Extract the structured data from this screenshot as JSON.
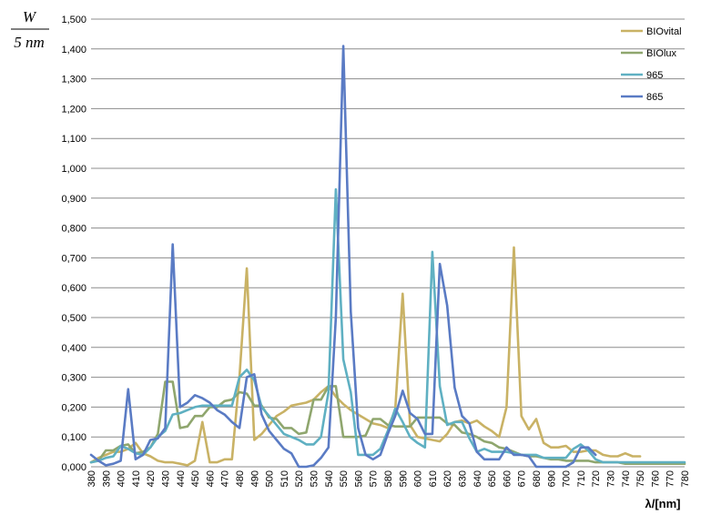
{
  "chart_data": {
    "type": "line",
    "ylabel_numerator": "W",
    "ylabel_denominator": "5 nm",
    "xlabel": "λ/[nm]",
    "ylim": [
      0,
      1.5
    ],
    "ytick_step": 0.1,
    "ytick_labels": [
      "0,000",
      "0,100",
      "0,200",
      "0,300",
      "0,400",
      "0,500",
      "0,600",
      "0,700",
      "0,800",
      "0,900",
      "1,000",
      "1,100",
      "1,200",
      "1,300",
      "1,400",
      "1,500"
    ],
    "x": [
      380,
      390,
      400,
      410,
      420,
      430,
      440,
      450,
      460,
      470,
      480,
      490,
      500,
      510,
      520,
      530,
      540,
      550,
      560,
      570,
      580,
      590,
      600,
      610,
      620,
      630,
      640,
      650,
      660,
      670,
      680,
      690,
      700,
      710,
      720,
      730,
      740,
      750,
      760,
      770,
      780
    ],
    "grid": true,
    "legend_position": "top-right",
    "series": [
      {
        "name": "BIOvital",
        "color": "#c9b265",
        "points": [
          [
            380,
            0.015
          ],
          [
            385,
            0.03
          ],
          [
            390,
            0.04
          ],
          [
            395,
            0.05
          ],
          [
            400,
            0.05
          ],
          [
            405,
            0.06
          ],
          [
            410,
            0.08
          ],
          [
            415,
            0.045
          ],
          [
            420,
            0.035
          ],
          [
            425,
            0.02
          ],
          [
            430,
            0.015
          ],
          [
            435,
            0.015
          ],
          [
            440,
            0.01
          ],
          [
            445,
            0.005
          ],
          [
            450,
            0.02
          ],
          [
            455,
            0.15
          ],
          [
            460,
            0.015
          ],
          [
            465,
            0.015
          ],
          [
            470,
            0.025
          ],
          [
            475,
            0.025
          ],
          [
            480,
            0.3
          ],
          [
            485,
            0.665
          ],
          [
            490,
            0.09
          ],
          [
            495,
            0.11
          ],
          [
            500,
            0.14
          ],
          [
            505,
            0.17
          ],
          [
            510,
            0.185
          ],
          [
            515,
            0.205
          ],
          [
            520,
            0.21
          ],
          [
            525,
            0.215
          ],
          [
            530,
            0.225
          ],
          [
            535,
            0.25
          ],
          [
            540,
            0.27
          ],
          [
            545,
            0.235
          ],
          [
            550,
            0.21
          ],
          [
            555,
            0.19
          ],
          [
            560,
            0.175
          ],
          [
            565,
            0.16
          ],
          [
            570,
            0.145
          ],
          [
            575,
            0.14
          ],
          [
            580,
            0.13
          ],
          [
            585,
            0.19
          ],
          [
            590,
            0.58
          ],
          [
            595,
            0.14
          ],
          [
            600,
            0.1
          ],
          [
            605,
            0.095
          ],
          [
            610,
            0.09
          ],
          [
            615,
            0.085
          ],
          [
            620,
            0.11
          ],
          [
            625,
            0.15
          ],
          [
            630,
            0.155
          ],
          [
            635,
            0.145
          ],
          [
            640,
            0.155
          ],
          [
            645,
            0.135
          ],
          [
            650,
            0.12
          ],
          [
            655,
            0.1
          ],
          [
            660,
            0.2
          ],
          [
            665,
            0.735
          ],
          [
            670,
            0.17
          ],
          [
            675,
            0.125
          ],
          [
            680,
            0.16
          ],
          [
            685,
            0.08
          ],
          [
            690,
            0.065
          ],
          [
            695,
            0.065
          ],
          [
            700,
            0.07
          ],
          [
            705,
            0.05
          ],
          [
            710,
            0.05
          ],
          [
            715,
            0.055
          ],
          [
            720,
            0.055
          ],
          [
            725,
            0.04
          ],
          [
            730,
            0.035
          ],
          [
            735,
            0.035
          ],
          [
            740,
            0.045
          ],
          [
            745,
            0.035
          ],
          [
            750,
            0.035
          ]
        ]
      },
      {
        "name": "BIOlux",
        "color": "#8fa66e",
        "points": [
          [
            380,
            0.015
          ],
          [
            385,
            0.02
          ],
          [
            390,
            0.055
          ],
          [
            395,
            0.055
          ],
          [
            400,
            0.07
          ],
          [
            405,
            0.075
          ],
          [
            410,
            0.045
          ],
          [
            415,
            0.05
          ],
          [
            420,
            0.065
          ],
          [
            425,
            0.11
          ],
          [
            430,
            0.285
          ],
          [
            435,
            0.285
          ],
          [
            440,
            0.13
          ],
          [
            445,
            0.135
          ],
          [
            450,
            0.17
          ],
          [
            455,
            0.17
          ],
          [
            460,
            0.2
          ],
          [
            465,
            0.2
          ],
          [
            470,
            0.22
          ],
          [
            475,
            0.225
          ],
          [
            480,
            0.25
          ],
          [
            485,
            0.245
          ],
          [
            490,
            0.205
          ],
          [
            495,
            0.205
          ],
          [
            500,
            0.165
          ],
          [
            505,
            0.16
          ],
          [
            510,
            0.13
          ],
          [
            515,
            0.13
          ],
          [
            520,
            0.11
          ],
          [
            525,
            0.115
          ],
          [
            530,
            0.225
          ],
          [
            535,
            0.225
          ],
          [
            540,
            0.27
          ],
          [
            545,
            0.27
          ],
          [
            550,
            0.1
          ],
          [
            555,
            0.1
          ],
          [
            560,
            0.1
          ],
          [
            565,
            0.105
          ],
          [
            570,
            0.16
          ],
          [
            575,
            0.16
          ],
          [
            580,
            0.14
          ],
          [
            585,
            0.135
          ],
          [
            590,
            0.135
          ],
          [
            595,
            0.135
          ],
          [
            600,
            0.165
          ],
          [
            605,
            0.165
          ],
          [
            610,
            0.165
          ],
          [
            615,
            0.165
          ],
          [
            620,
            0.145
          ],
          [
            625,
            0.14
          ],
          [
            630,
            0.115
          ],
          [
            635,
            0.11
          ],
          [
            640,
            0.1
          ],
          [
            645,
            0.085
          ],
          [
            650,
            0.08
          ],
          [
            655,
            0.065
          ],
          [
            660,
            0.06
          ],
          [
            665,
            0.05
          ],
          [
            670,
            0.04
          ],
          [
            675,
            0.035
          ],
          [
            680,
            0.035
          ],
          [
            685,
            0.03
          ],
          [
            690,
            0.025
          ],
          [
            695,
            0.025
          ],
          [
            700,
            0.02
          ],
          [
            705,
            0.02
          ],
          [
            710,
            0.02
          ],
          [
            715,
            0.02
          ],
          [
            720,
            0.015
          ],
          [
            725,
            0.015
          ],
          [
            730,
            0.015
          ],
          [
            735,
            0.015
          ],
          [
            740,
            0.01
          ],
          [
            745,
            0.01
          ],
          [
            750,
            0.01
          ],
          [
            755,
            0.01
          ],
          [
            760,
            0.01
          ],
          [
            765,
            0.01
          ],
          [
            770,
            0.01
          ],
          [
            775,
            0.01
          ],
          [
            780,
            0.01
          ]
        ]
      },
      {
        "name": "965",
        "color": "#5fb0c2",
        "points": [
          [
            380,
            0.015
          ],
          [
            385,
            0.02
          ],
          [
            390,
            0.03
          ],
          [
            395,
            0.035
          ],
          [
            400,
            0.07
          ],
          [
            405,
            0.06
          ],
          [
            410,
            0.045
          ],
          [
            415,
            0.04
          ],
          [
            420,
            0.065
          ],
          [
            425,
            0.1
          ],
          [
            430,
            0.12
          ],
          [
            435,
            0.175
          ],
          [
            440,
            0.18
          ],
          [
            445,
            0.19
          ],
          [
            450,
            0.2
          ],
          [
            455,
            0.205
          ],
          [
            460,
            0.205
          ],
          [
            465,
            0.205
          ],
          [
            470,
            0.205
          ],
          [
            475,
            0.205
          ],
          [
            480,
            0.3
          ],
          [
            485,
            0.325
          ],
          [
            490,
            0.29
          ],
          [
            495,
            0.2
          ],
          [
            500,
            0.17
          ],
          [
            505,
            0.14
          ],
          [
            510,
            0.11
          ],
          [
            515,
            0.1
          ],
          [
            520,
            0.09
          ],
          [
            525,
            0.075
          ],
          [
            530,
            0.075
          ],
          [
            535,
            0.1
          ],
          [
            540,
            0.25
          ],
          [
            545,
            0.93
          ],
          [
            550,
            0.36
          ],
          [
            555,
            0.25
          ],
          [
            560,
            0.04
          ],
          [
            565,
            0.04
          ],
          [
            570,
            0.04
          ],
          [
            575,
            0.06
          ],
          [
            580,
            0.12
          ],
          [
            585,
            0.195
          ],
          [
            590,
            0.15
          ],
          [
            595,
            0.1
          ],
          [
            600,
            0.08
          ],
          [
            605,
            0.065
          ],
          [
            610,
            0.72
          ],
          [
            615,
            0.27
          ],
          [
            620,
            0.14
          ],
          [
            625,
            0.15
          ],
          [
            630,
            0.15
          ],
          [
            635,
            0.095
          ],
          [
            640,
            0.05
          ],
          [
            645,
            0.06
          ],
          [
            650,
            0.05
          ],
          [
            655,
            0.05
          ],
          [
            660,
            0.05
          ],
          [
            665,
            0.045
          ],
          [
            670,
            0.04
          ],
          [
            675,
            0.04
          ],
          [
            680,
            0.04
          ],
          [
            685,
            0.03
          ],
          [
            690,
            0.03
          ],
          [
            695,
            0.03
          ],
          [
            700,
            0.03
          ],
          [
            705,
            0.06
          ],
          [
            710,
            0.075
          ],
          [
            715,
            0.055
          ],
          [
            720,
            0.025
          ],
          [
            725,
            0.015
          ],
          [
            730,
            0.015
          ],
          [
            735,
            0.015
          ],
          [
            740,
            0.015
          ],
          [
            745,
            0.015
          ],
          [
            750,
            0.015
          ],
          [
            755,
            0.015
          ],
          [
            760,
            0.015
          ],
          [
            765,
            0.015
          ],
          [
            770,
            0.015
          ],
          [
            775,
            0.015
          ],
          [
            780,
            0.015
          ]
        ]
      },
      {
        "name": "865",
        "color": "#5a7bc4",
        "points": [
          [
            380,
            0.04
          ],
          [
            385,
            0.02
          ],
          [
            390,
            0.005
          ],
          [
            395,
            0.01
          ],
          [
            400,
            0.02
          ],
          [
            405,
            0.26
          ],
          [
            410,
            0.025
          ],
          [
            415,
            0.04
          ],
          [
            420,
            0.09
          ],
          [
            425,
            0.095
          ],
          [
            430,
            0.13
          ],
          [
            435,
            0.745
          ],
          [
            440,
            0.2
          ],
          [
            445,
            0.215
          ],
          [
            450,
            0.24
          ],
          [
            455,
            0.23
          ],
          [
            460,
            0.215
          ],
          [
            465,
            0.19
          ],
          [
            470,
            0.175
          ],
          [
            475,
            0.15
          ],
          [
            480,
            0.13
          ],
          [
            485,
            0.3
          ],
          [
            490,
            0.31
          ],
          [
            495,
            0.175
          ],
          [
            500,
            0.12
          ],
          [
            505,
            0.09
          ],
          [
            510,
            0.06
          ],
          [
            515,
            0.045
          ],
          [
            520,
            0.0
          ],
          [
            525,
            0.0
          ],
          [
            530,
            0.005
          ],
          [
            535,
            0.03
          ],
          [
            540,
            0.065
          ],
          [
            545,
            0.5
          ],
          [
            550,
            1.41
          ],
          [
            555,
            0.52
          ],
          [
            560,
            0.13
          ],
          [
            565,
            0.04
          ],
          [
            570,
            0.025
          ],
          [
            575,
            0.04
          ],
          [
            580,
            0.11
          ],
          [
            585,
            0.17
          ],
          [
            590,
            0.255
          ],
          [
            595,
            0.18
          ],
          [
            600,
            0.16
          ],
          [
            605,
            0.11
          ],
          [
            610,
            0.11
          ],
          [
            615,
            0.68
          ],
          [
            620,
            0.54
          ],
          [
            625,
            0.265
          ],
          [
            630,
            0.17
          ],
          [
            635,
            0.145
          ],
          [
            640,
            0.05
          ],
          [
            645,
            0.025
          ],
          [
            650,
            0.025
          ],
          [
            655,
            0.025
          ],
          [
            660,
            0.065
          ],
          [
            665,
            0.04
          ],
          [
            670,
            0.04
          ],
          [
            675,
            0.035
          ],
          [
            680,
            0.0
          ],
          [
            685,
            0.0
          ],
          [
            690,
            0.0
          ],
          [
            695,
            0.0
          ],
          [
            700,
            0.0
          ],
          [
            705,
            0.015
          ],
          [
            710,
            0.065
          ],
          [
            715,
            0.065
          ],
          [
            720,
            0.04
          ]
        ]
      }
    ]
  }
}
